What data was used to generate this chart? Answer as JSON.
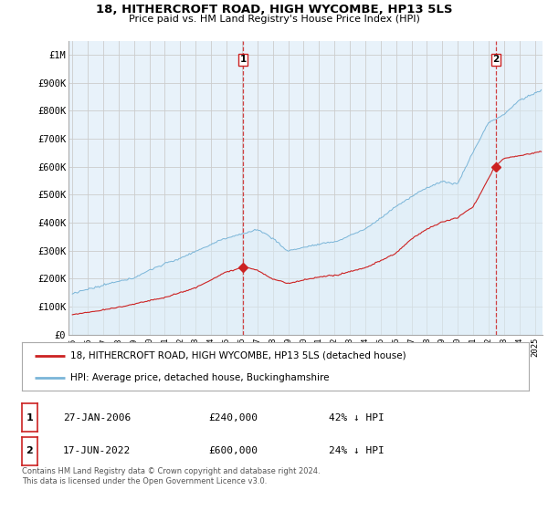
{
  "title": "18, HITHERCROFT ROAD, HIGH WYCOMBE, HP13 5LS",
  "subtitle": "Price paid vs. HM Land Registry's House Price Index (HPI)",
  "ylabel_ticks": [
    "£0",
    "£100K",
    "£200K",
    "£300K",
    "£400K",
    "£500K",
    "£600K",
    "£700K",
    "£800K",
    "£900K",
    "£1M"
  ],
  "ytick_values": [
    0,
    100000,
    200000,
    300000,
    400000,
    500000,
    600000,
    700000,
    800000,
    900000,
    1000000
  ],
  "ylim": [
    0,
    1050000
  ],
  "sale1_date_num": 2006.07,
  "sale1_price": 240000,
  "sale1_label": "1",
  "sale2_date_num": 2022.46,
  "sale2_price": 600000,
  "sale2_label": "2",
  "hpi_color": "#7ab5d8",
  "hpi_fill_color": "#ddeef8",
  "price_color": "#cc2222",
  "vline_color": "#cc2222",
  "grid_color": "#cccccc",
  "plot_bg_color": "#e8f2fa",
  "background_color": "#ffffff",
  "legend_label_price": "18, HITHERCROFT ROAD, HIGH WYCOMBE, HP13 5LS (detached house)",
  "legend_label_hpi": "HPI: Average price, detached house, Buckinghamshire",
  "table_row1": [
    "1",
    "27-JAN-2006",
    "£240,000",
    "42% ↓ HPI"
  ],
  "table_row2": [
    "2",
    "17-JUN-2022",
    "£600,000",
    "24% ↓ HPI"
  ],
  "footer": "Contains HM Land Registry data © Crown copyright and database right 2024.\nThis data is licensed under the Open Government Licence v3.0.",
  "xlim_start": 1994.75,
  "xlim_end": 2025.5
}
